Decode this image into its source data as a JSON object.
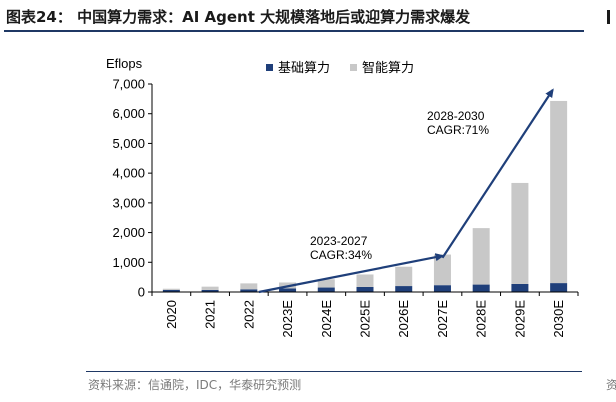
{
  "figure": {
    "title": "图表24：  中国算力需求：AI Agent 大规模落地后或迎算力需求爆发",
    "source": "资料来源：信通院，IDC，华泰研究预测",
    "edge_char": "资"
  },
  "chart_data": {
    "type": "bar",
    "stacked": true,
    "ylabel": "Eflops",
    "ylim": [
      0,
      7000
    ],
    "yticks": [
      0,
      1000,
      2000,
      3000,
      4000,
      5000,
      6000,
      7000
    ],
    "ytick_labels": [
      "0",
      "1,000",
      "2,000",
      "3,000",
      "4,000",
      "5,000",
      "6,000",
      "7,000"
    ],
    "categories": [
      "2020",
      "2021",
      "2022",
      "2023E",
      "2024E",
      "2025E",
      "2026E",
      "2027E",
      "2028E",
      "2029E",
      "2030E"
    ],
    "series": [
      {
        "name": "基础算力",
        "color": "#1f3f7a",
        "values": [
          70,
          70,
          90,
          120,
          150,
          170,
          200,
          230,
          250,
          270,
          300
        ]
      },
      {
        "name": "智能算力",
        "color": "#c8c8c8",
        "values": [
          40,
          110,
          200,
          200,
          280,
          420,
          650,
          1030,
          1900,
          3400,
          6130
        ]
      }
    ],
    "legend_position": "top",
    "annotations": [
      {
        "label_line1": "2023-2027",
        "label_line2": "CAGR:34%",
        "from_category": "2022",
        "from_value": 0,
        "to_category": "2027E",
        "to_value": 1150
      },
      {
        "label_line1": "2028-2030",
        "label_line2": "CAGR:71%",
        "from_category": "2027E",
        "from_value": 1150,
        "to_category": "2030E",
        "to_value": 7000
      }
    ],
    "arrow_color": "#1f3f7a"
  }
}
